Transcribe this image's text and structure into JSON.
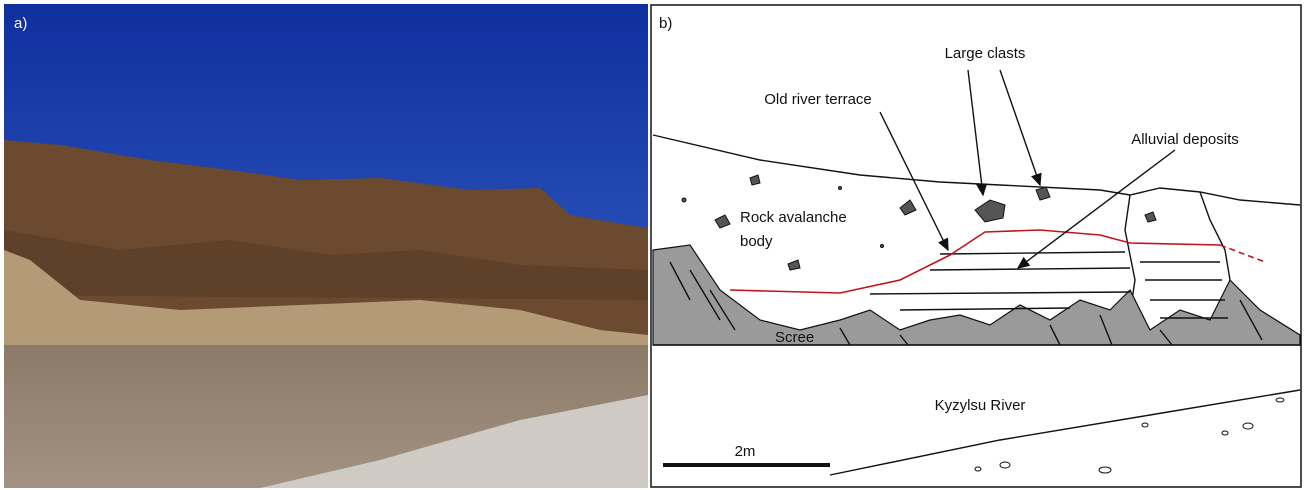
{
  "panel_a": {
    "label": "a)"
  },
  "panel_b": {
    "label": "b)",
    "labels": {
      "large_clasts": "Large clasts",
      "old_river_terrace": "Old river terrace",
      "alluvial_deposits": "Alluvial deposits",
      "rock_avalanche": [
        "Rock avalanche",
        "body"
      ],
      "scree": "Scree",
      "river": "Kyzylsu River"
    },
    "scale_bar": "2m"
  }
}
